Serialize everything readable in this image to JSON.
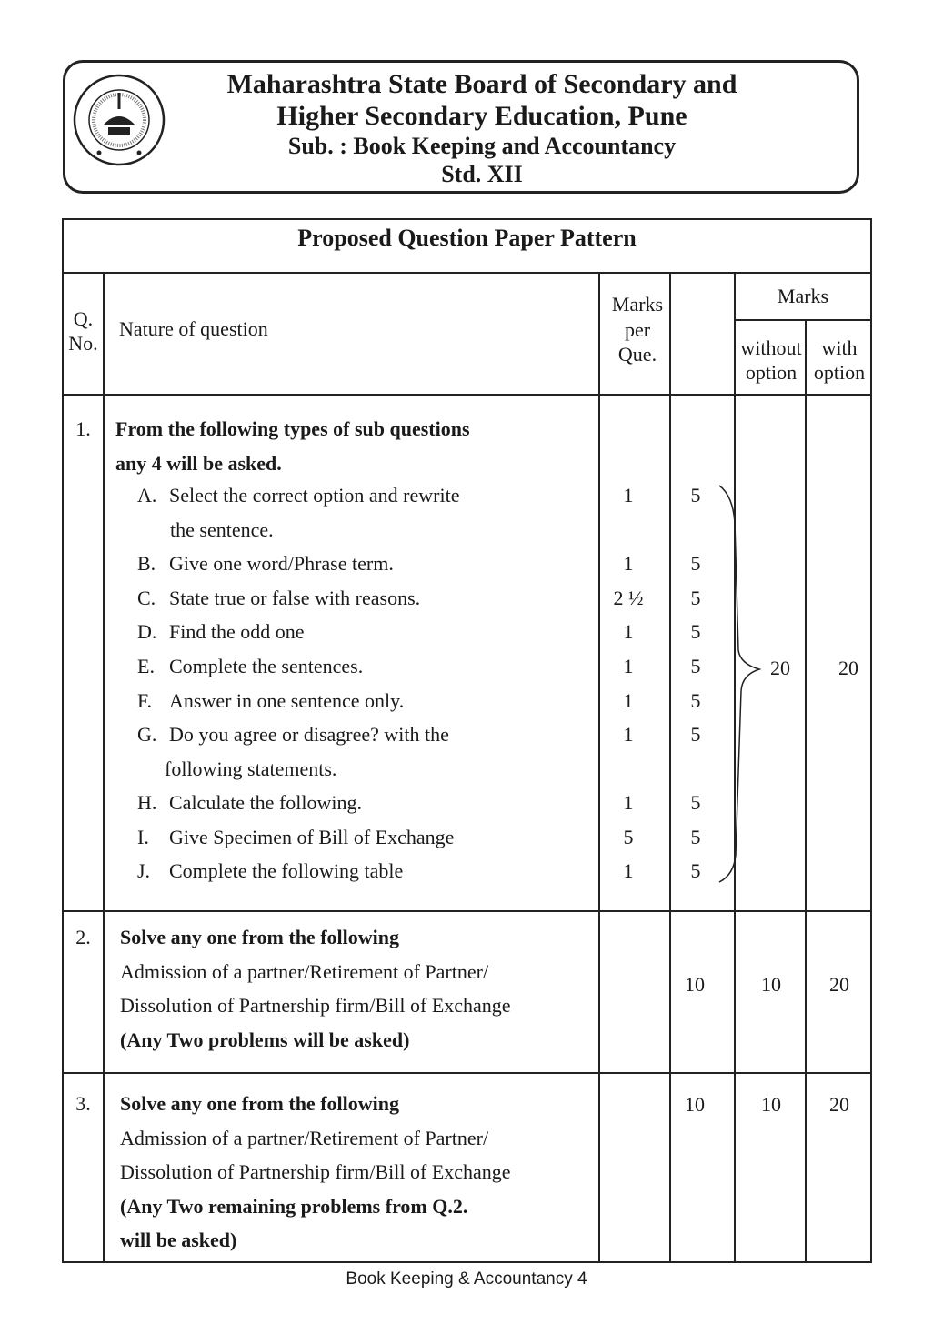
{
  "header": {
    "logo_text": "महाराष्ट्र राज्य माध्यमिक व उच्च माध्यमिक शिक्षण मंडळ • पुणे •",
    "board_line1": "Maharashtra State Board of Secondary and",
    "board_line2": "Higher Secondary Education, Pune",
    "subject": "Sub. : Book Keeping and Accountancy",
    "standard": "Std. XII"
  },
  "table": {
    "title": "Proposed Question Paper Pattern",
    "headers": {
      "qno_1": "Q.",
      "qno_2": "No.",
      "nature": "Nature of question",
      "mpq_1": "Marks",
      "mpq_2": "per",
      "mpq_3": "Que.",
      "marks": "Marks",
      "without_1": "without",
      "without_2": "option",
      "with_1": "with",
      "with_2": "option"
    },
    "q1": {
      "no": "1.",
      "title_1": "From the following types of sub questions",
      "title_2": "any 4 will be asked.",
      "items": [
        {
          "letter": "A.",
          "text": "Select the correct option and rewrite",
          "cont": "the sentence.",
          "marks": "1",
          "count": "5"
        },
        {
          "letter": "B.",
          "text": "Give one word/Phrase term.",
          "marks": "1",
          "count": "5"
        },
        {
          "letter": "C.",
          "text": "State true or false with reasons.",
          "marks": "2 ½",
          "count": "5"
        },
        {
          "letter": "D.",
          "text": "Find the odd one",
          "marks": "1",
          "count": "5"
        },
        {
          "letter": "E.",
          "text": "Complete the sentences.",
          "marks": "1",
          "count": "5"
        },
        {
          "letter": "F.",
          "text": "Answer in one sentence only.",
          "marks": "1",
          "count": "5"
        },
        {
          "letter": "G.",
          "text": "Do you agree or disagree? with the",
          "cont": "following statements.",
          "marks": "1",
          "count": "5"
        },
        {
          "letter": "H.",
          "text": "Calculate the following.",
          "marks": "1",
          "count": "5"
        },
        {
          "letter": "I.",
          "text": "Give Specimen of Bill of Exchange",
          "marks": "5",
          "count": "5"
        },
        {
          "letter": "J.",
          "text": "Complete the following table",
          "marks": "1",
          "count": "5"
        }
      ],
      "without": "20",
      "with": "20"
    },
    "q2": {
      "no": "2.",
      "lines": [
        "Solve any one from the following",
        "Admission of a partner/Retirement of Partner/",
        "Dissolution of Partnership firm/Bill of Exchange",
        "(Any Two problems will be asked)"
      ],
      "count": "10",
      "without": "10",
      "with": "20"
    },
    "q3": {
      "no": "3.",
      "lines": [
        "Solve any one from the following",
        "Admission of a partner/Retirement of Partner/",
        "Dissolution of Partnership firm/Bill of Exchange",
        "(Any Two remaining problems from Q.2.",
        "will be asked)"
      ],
      "count": "10",
      "without": "10",
      "with": "20"
    }
  },
  "footer": "Book Keeping & Accountancy 4"
}
